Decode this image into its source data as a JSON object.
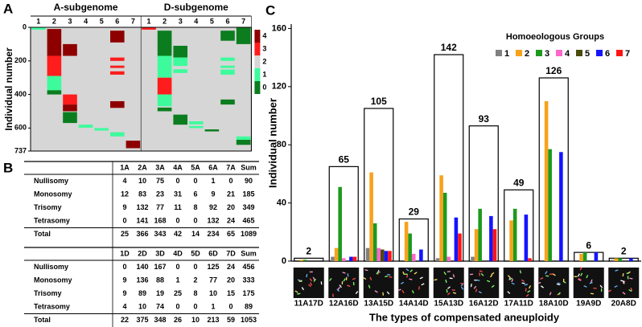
{
  "panel_labels": [
    "A",
    "B",
    "C"
  ],
  "chart_data": [
    {
      "type": "heatmap",
      "ylabel": "Individual number",
      "ylim": [
        0,
        737
      ],
      "yticks": [
        0,
        200,
        400,
        600,
        737
      ],
      "background": "#d6d6d6",
      "colorbar": {
        "ticks": [
          0,
          1,
          2,
          3,
          4
        ],
        "colors": [
          "#0b7d1e",
          "#3dfb9c",
          "#d6d6d6",
          "#ff1c1c",
          "#8e0000"
        ]
      },
      "groups": [
        {
          "name": "A-subgenome",
          "columns": [
            {
              "label": "1",
              "segments": [
                {
                  "from": 2,
                  "to": 14,
                  "value": 1
                }
              ]
            },
            {
              "label": "2",
              "segments": [
                {
                  "from": 10,
                  "to": 170,
                  "value": 4
                },
                {
                  "from": 170,
                  "to": 290,
                  "value": 3
                },
                {
                  "from": 290,
                  "to": 375,
                  "value": 1
                },
                {
                  "from": 375,
                  "to": 400,
                  "value": 0
                }
              ]
            },
            {
              "label": "3",
              "segments": [
                {
                  "from": 100,
                  "to": 170,
                  "value": 4
                },
                {
                  "from": 400,
                  "to": 460,
                  "value": 3
                },
                {
                  "from": 460,
                  "to": 500,
                  "value": 4
                },
                {
                  "from": 505,
                  "to": 570,
                  "value": 0
                }
              ]
            },
            {
              "label": "4",
              "segments": [
                {
                  "from": 580,
                  "to": 598,
                  "value": 1
                }
              ]
            },
            {
              "label": "5",
              "segments": [
                {
                  "from": 600,
                  "to": 615,
                  "value": 1
                }
              ]
            },
            {
              "label": "6",
              "segments": [
                {
                  "from": 20,
                  "to": 90,
                  "value": 4
                },
                {
                  "from": 180,
                  "to": 200,
                  "value": 3
                },
                {
                  "from": 228,
                  "to": 242,
                  "value": 3
                },
                {
                  "from": 262,
                  "to": 282,
                  "value": 3
                },
                {
                  "from": 440,
                  "to": 480,
                  "value": 4
                },
                {
                  "from": 625,
                  "to": 650,
                  "value": 1
                }
              ]
            },
            {
              "label": "7",
              "segments": [
                {
                  "from": 675,
                  "to": 720,
                  "value": 4
                }
              ]
            }
          ]
        },
        {
          "name": "D-subgenome",
          "columns": [
            {
              "label": "1",
              "segments": [
                {
                  "from": 0,
                  "to": 14,
                  "value": 3
                }
              ]
            },
            {
              "label": "2",
              "segments": [
                {
                  "from": 20,
                  "to": 170,
                  "value": 0
                },
                {
                  "from": 170,
                  "to": 300,
                  "value": 1
                },
                {
                  "from": 300,
                  "to": 400,
                  "value": 3
                },
                {
                  "from": 400,
                  "to": 470,
                  "value": 1
                },
                {
                  "from": 478,
                  "to": 500,
                  "value": 0
                }
              ]
            },
            {
              "label": "3",
              "segments": [
                {
                  "from": 110,
                  "to": 180,
                  "value": 0
                },
                {
                  "from": 180,
                  "to": 230,
                  "value": 1
                },
                {
                  "from": 250,
                  "to": 272,
                  "value": 1
                },
                {
                  "from": 520,
                  "to": 580,
                  "value": 0
                }
              ]
            },
            {
              "label": "4",
              "segments": [
                {
                  "from": 560,
                  "to": 578,
                  "value": 1
                },
                {
                  "from": 588,
                  "to": 600,
                  "value": 1
                }
              ]
            },
            {
              "label": "5",
              "segments": [
                {
                  "from": 608,
                  "to": 620,
                  "value": 0
                }
              ]
            },
            {
              "label": "6",
              "segments": [
                {
                  "from": 20,
                  "to": 80,
                  "value": 0
                },
                {
                  "from": 180,
                  "to": 200,
                  "value": 1
                },
                {
                  "from": 228,
                  "to": 242,
                  "value": 1
                },
                {
                  "from": 252,
                  "to": 282,
                  "value": 1
                },
                {
                  "from": 430,
                  "to": 460,
                  "value": 0
                }
              ]
            },
            {
              "label": "7",
              "segments": [
                {
                  "from": 0,
                  "to": 100,
                  "value": 0
                },
                {
                  "from": 650,
                  "to": 670,
                  "value": 1
                },
                {
                  "from": 670,
                  "to": 700,
                  "value": 0
                }
              ]
            }
          ]
        }
      ]
    },
    {
      "type": "bar",
      "xlabel": "The types of compensated aneuploidy",
      "ylabel": "Individual number",
      "legend_title": "Homoeologous Groups",
      "legend": "top-right",
      "categories": [
        "11A17D",
        "12A16D",
        "13A15D",
        "14A14D",
        "15A13D",
        "16A12D",
        "17A11D",
        "18A10D",
        "19A9D",
        "20A8D"
      ],
      "totals": [
        2,
        65,
        105,
        29,
        142,
        93,
        49,
        126,
        6,
        2
      ],
      "ylim": [
        0,
        163
      ],
      "yticks": [
        0,
        40,
        80,
        120,
        160
      ],
      "series": [
        {
          "name": "1",
          "color": "#808080",
          "values": [
            0,
            3,
            9,
            0,
            2,
            3,
            0,
            0,
            0,
            1
          ]
        },
        {
          "name": "2",
          "color": "#f7a21b",
          "values": [
            1,
            9,
            61,
            27,
            59,
            22,
            28,
            110,
            5,
            2
          ]
        },
        {
          "name": "3",
          "color": "#1d9a1d",
          "values": [
            1,
            51,
            26,
            19,
            47,
            36,
            36,
            77,
            6,
            2
          ]
        },
        {
          "name": "4",
          "color": "#ff66cc",
          "values": [
            0,
            2,
            9,
            5,
            3,
            0,
            0,
            0,
            0,
            0
          ]
        },
        {
          "name": "5",
          "color": "#4a4a0a",
          "values": [
            0,
            0,
            8,
            0,
            0,
            0,
            0,
            0,
            0,
            0
          ]
        },
        {
          "name": "6",
          "color": "#1414ff",
          "values": [
            0,
            3,
            7,
            8,
            30,
            31,
            32,
            75,
            6,
            2
          ]
        },
        {
          "name": "7",
          "color": "#ff1414",
          "values": [
            0,
            3,
            7,
            0,
            19,
            22,
            2,
            0,
            0,
            0
          ]
        }
      ]
    }
  ],
  "table": {
    "blocks": [
      {
        "header": [
          "1A",
          "2A",
          "3A",
          "4A",
          "5A",
          "6A",
          "7A",
          "Sum"
        ],
        "rows": [
          [
            "Nullisomy",
            4,
            10,
            75,
            0,
            0,
            1,
            0,
            90
          ],
          [
            "Monosomy",
            12,
            83,
            23,
            31,
            6,
            9,
            21,
            185
          ],
          [
            "Trisomy",
            9,
            132,
            77,
            11,
            8,
            92,
            20,
            349
          ],
          [
            "Tetrasomy",
            0,
            141,
            168,
            0,
            0,
            132,
            24,
            465
          ],
          [
            "Total",
            25,
            366,
            343,
            42,
            14,
            234,
            65,
            1089
          ]
        ]
      },
      {
        "header": [
          "1D",
          "2D",
          "3D",
          "4D",
          "5D",
          "6D",
          "7D",
          "Sum"
        ],
        "rows": [
          [
            "Nullisomy",
            0,
            140,
            167,
            0,
            0,
            125,
            24,
            456
          ],
          [
            "Monosomy",
            9,
            136,
            88,
            1,
            2,
            77,
            20,
            333
          ],
          [
            "Trisomy",
            9,
            89,
            19,
            25,
            8,
            10,
            15,
            175
          ],
          [
            "Tetrasomy",
            4,
            10,
            74,
            0,
            0,
            1,
            0,
            89
          ],
          [
            "Total",
            22,
            375,
            348,
            26,
            10,
            213,
            59,
            1053
          ]
        ]
      }
    ]
  }
}
